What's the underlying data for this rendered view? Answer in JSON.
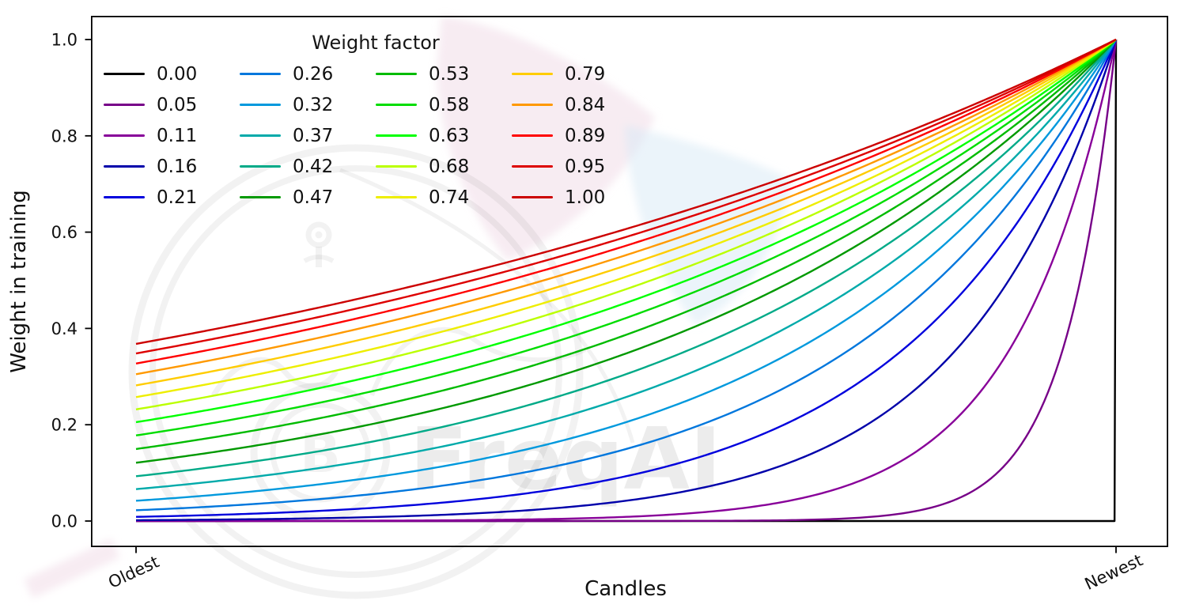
{
  "watermark": {
    "text": "FreqAI",
    "logo": "freqtrade-bot-logo",
    "colors": {
      "pink": "#eed4e3",
      "blue": "#d7eaf5",
      "gray": "#000000"
    }
  },
  "chart_data": {
    "type": "line",
    "title": "",
    "xlabel": "Candles",
    "ylabel": "Weight in training",
    "x_range": [
      0,
      1
    ],
    "ylim": [
      -0.05,
      1.05
    ],
    "xlim": [
      -0.05,
      1.05
    ],
    "grid": false,
    "y_ticks": [
      {
        "value": 0.0,
        "label": "0.0"
      },
      {
        "value": 0.2,
        "label": "0.2"
      },
      {
        "value": 0.4,
        "label": "0.4"
      },
      {
        "value": 0.6,
        "label": "0.6"
      },
      {
        "value": 0.8,
        "label": "0.8"
      },
      {
        "value": 1.0,
        "label": "1.0"
      }
    ],
    "x_ticks": [
      {
        "position": 0,
        "label": "Oldest"
      },
      {
        "position": 1,
        "label": "Newest"
      }
    ],
    "x_tick_rotation_deg": 25,
    "legend": {
      "title": "Weight factor",
      "position": "upper left",
      "ncols": 4,
      "frame": false,
      "order": "column-major"
    },
    "formula": "weight(x) = exp(-(1 - x) / factor); factor = i/19; factor 0 gives weight 0 for all candles except the newest (weight 1)",
    "series": [
      {
        "label": "0.00",
        "factor": 0.0,
        "color": "#000000"
      },
      {
        "label": "0.05",
        "factor": 0.05263,
        "color": "#770088"
      },
      {
        "label": "0.11",
        "factor": 0.10526,
        "color": "#880099"
      },
      {
        "label": "0.16",
        "factor": 0.15789,
        "color": "#0000AA"
      },
      {
        "label": "0.21",
        "factor": 0.21053,
        "color": "#0000DD"
      },
      {
        "label": "0.26",
        "factor": 0.26316,
        "color": "#0077DD"
      },
      {
        "label": "0.32",
        "factor": 0.31579,
        "color": "#0099DD"
      },
      {
        "label": "0.37",
        "factor": 0.36842,
        "color": "#00AAAA"
      },
      {
        "label": "0.42",
        "factor": 0.42105,
        "color": "#00AA88"
      },
      {
        "label": "0.47",
        "factor": 0.47368,
        "color": "#009900"
      },
      {
        "label": "0.53",
        "factor": 0.52632,
        "color": "#00BB00"
      },
      {
        "label": "0.58",
        "factor": 0.57895,
        "color": "#00DD00"
      },
      {
        "label": "0.63",
        "factor": 0.63158,
        "color": "#00FF00"
      },
      {
        "label": "0.68",
        "factor": 0.68421,
        "color": "#BBFF00"
      },
      {
        "label": "0.74",
        "factor": 0.73684,
        "color": "#EEEE00"
      },
      {
        "label": "0.79",
        "factor": 0.78947,
        "color": "#FFCC00"
      },
      {
        "label": "0.84",
        "factor": 0.84211,
        "color": "#FF9900"
      },
      {
        "label": "0.89",
        "factor": 0.89474,
        "color": "#FF0000"
      },
      {
        "label": "0.95",
        "factor": 0.94737,
        "color": "#DD0000"
      },
      {
        "label": "1.00",
        "factor": 1.0,
        "color": "#CC0000"
      }
    ]
  }
}
